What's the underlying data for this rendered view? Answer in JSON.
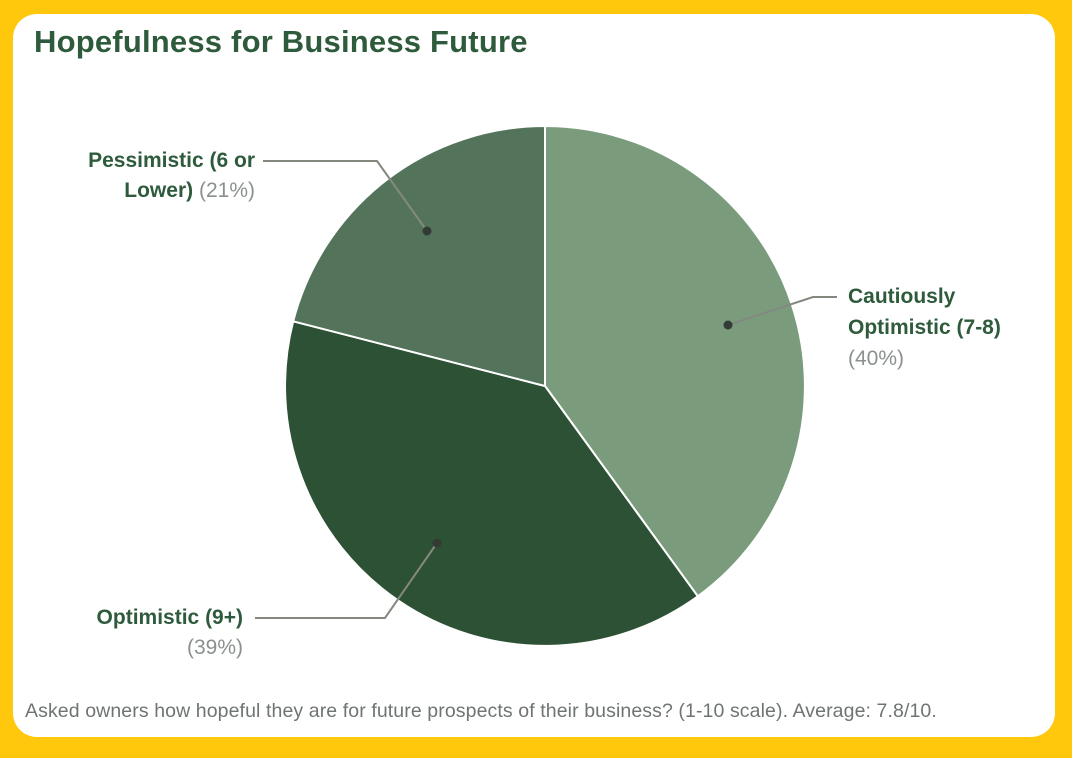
{
  "title": "Hopefulness for Business Future",
  "footnote": "Asked owners how hopeful they are for future prospects of their business? (1-10 scale). Average: 7.8/10.",
  "colors": {
    "frame": "#FFC80D",
    "card": "#FFFFFF",
    "title_text": "#2E5B3C",
    "label_text": "#2E5B3C",
    "percent_text": "#8A918C",
    "footnote_text": "#6E7571",
    "leader_line": "#84897F",
    "leader_dot": "#333B34",
    "slice_border": "#FFFFFF"
  },
  "chart_data": {
    "type": "pie",
    "title": "Hopefulness for Business Future",
    "start_angle_deg": 0,
    "direction": "clockwise",
    "legend_position": "callout-labels",
    "slices": [
      {
        "id": "cautiously-optimistic",
        "label": "Cautiously Optimistic (7-8)",
        "pct": 40,
        "color": "#7A9C7D"
      },
      {
        "id": "optimistic",
        "label": "Optimistic (9+)",
        "pct": 39,
        "color": "#2D5134"
      },
      {
        "id": "pessimistic",
        "label": "Pessimistic (6 or Lower)",
        "pct": 21,
        "color": "#53745A"
      }
    ],
    "scale": "1-10",
    "average": "7.8/10"
  },
  "callouts": [
    {
      "id": "cautiously-optimistic",
      "lines": [
        "Cautiously",
        "Optimistic (7-8)"
      ],
      "pct": "(40%)"
    },
    {
      "id": "optimistic",
      "lines": [
        "Optimistic (9+)"
      ],
      "pct": "(39%)"
    },
    {
      "id": "pessimistic",
      "lines": [
        "Pessimistic (6 or",
        "Lower)"
      ],
      "pct": "(21%)"
    }
  ]
}
